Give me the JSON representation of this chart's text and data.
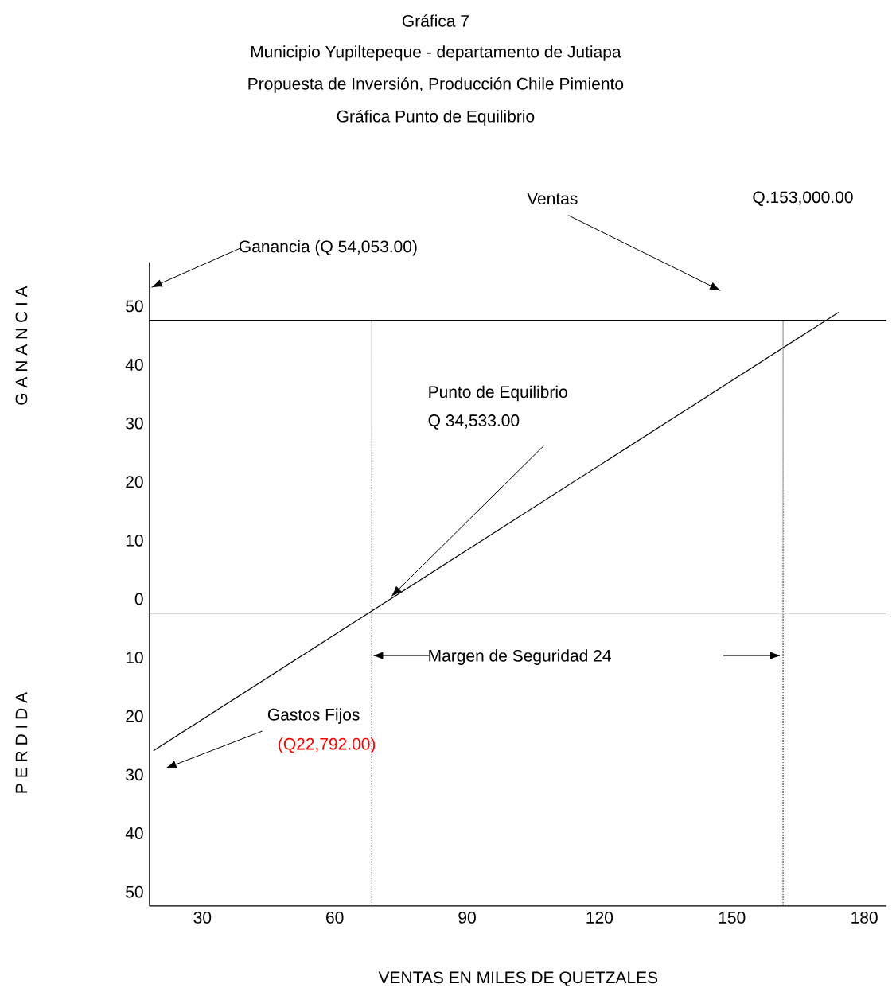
{
  "chart_data": {
    "type": "line",
    "title": "Gráfica 7",
    "subtitle": "Municipio Yupiltepeque - departamento de Jutiapa",
    "xlabel": "VENTAS EN MILES DE QUETZALES",
    "series": [
      {
        "x": [
          18.9,
          174.3
        ],
        "values": [
          -25.9,
          49.0
        ],
        "color": "#000000"
      }
    ],
    "xlim": [
      18,
      185
    ],
    "ylim": [
      -52.4,
      57.5
    ],
    "xticks": [
      30,
      60,
      90,
      120,
      150,
      180
    ],
    "yticks": [
      {
        "value": -50,
        "label": "50"
      },
      {
        "value": -40,
        "label": "40"
      },
      {
        "value": -30,
        "label": "30"
      },
      {
        "value": -20,
        "label": "20"
      },
      {
        "value": -10,
        "label": "10"
      },
      0,
      10,
      20,
      30,
      40,
      50
    ],
    "marker": "none",
    "line_style": "solid",
    "ref_lines": [
      {
        "axis": "y",
        "value": -2.4,
        "color": "#000000",
        "line_style": "solid"
      },
      {
        "axis": "y",
        "value": 47.6,
        "color": "#000000",
        "line_style": "solid"
      },
      {
        "axis": "x",
        "value": 68.4,
        "color": "#000000",
        "line_style": "dotted"
      },
      {
        "axis": "x",
        "value": 161.6,
        "color": "#000000",
        "line_style": "dotted"
      }
    ],
    "annotations": [
      "Propuesta de Inversión, Producción Chile Pimiento",
      "Gráfica Punto de Equilibrio",
      "P E R D I D A",
      "Ganancia (Q 54,053.00)",
      "Ventas",
      "Q.153,000.00",
      "Punto de Equilibrio",
      "Q 34,533.00",
      "Margen de Seguridad   24",
      "Gastos Fijos",
      "(Q22,792.00)",
      "G A N A N C I A"
    ]
  }
}
